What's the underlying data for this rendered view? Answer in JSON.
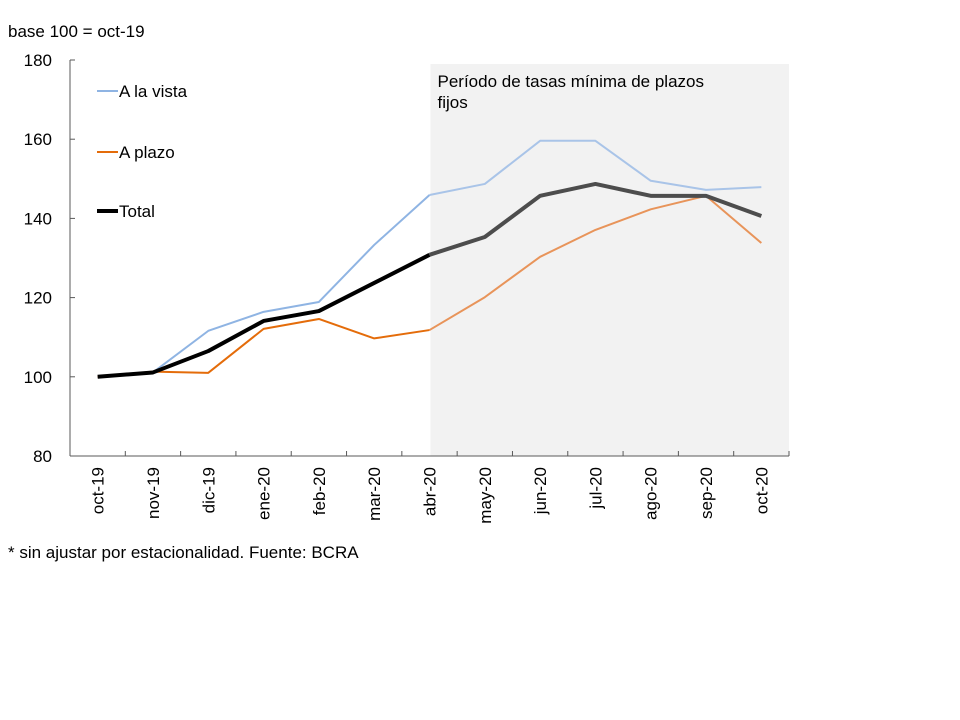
{
  "chart_data": {
    "type": "line",
    "title": "",
    "unit_label": "base 100 = oct-19",
    "footnote": "* sin ajustar por estacionalidad. Fuente: BCRA",
    "xlabel": "",
    "ylabel": "",
    "ylim": [
      80,
      180
    ],
    "yticks": [
      80,
      100,
      120,
      140,
      160,
      180
    ],
    "grid": false,
    "legend_position": "top-left",
    "categories": [
      "oct-19",
      "nov-19",
      "dic-19",
      "ene-20",
      "feb-20",
      "mar-20",
      "abr-20",
      "may-20",
      "jun-20",
      "jul-20",
      "ago-20",
      "sep-20",
      "oct-20"
    ],
    "series": [
      {
        "name": "A la vista",
        "color": "#8FB4E3",
        "shaded_color": "#A9C4E8",
        "values": [
          100,
          101.1,
          111.6,
          116.4,
          118.9,
          133.3,
          145.9,
          148.7,
          159.6,
          159.6,
          149.5,
          147.2,
          147.9
        ]
      },
      {
        "name": "A plazo",
        "color": "#E46C0A",
        "shaded_color": "#E8945A",
        "values": [
          100,
          101.3,
          101.0,
          112.1,
          114.6,
          109.7,
          111.8,
          120.1,
          130.3,
          137.1,
          142.3,
          145.7,
          133.8
        ]
      },
      {
        "name": "Total",
        "color": "#000000",
        "shaded_color": "#4D4D4D",
        "values": [
          100,
          101.1,
          106.5,
          114.1,
          116.6,
          123.7,
          130.8,
          135.3,
          145.7,
          148.7,
          145.7,
          145.7,
          140.6
        ]
      }
    ],
    "annotations": [
      {
        "type": "shaded-region",
        "label_lines": [
          "Período de tasas mínima de plazos",
          "fijos"
        ],
        "x_start": "abr-20",
        "x_end": "oct-20",
        "color": "#F2F2F2"
      }
    ]
  }
}
